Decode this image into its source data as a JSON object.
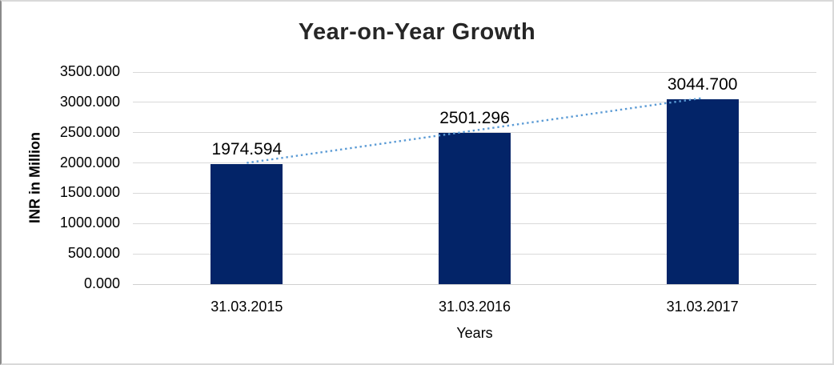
{
  "chart_data": {
    "type": "bar",
    "title": "Year-on-Year Growth",
    "xlabel": "Years",
    "ylabel": "INR in Million",
    "categories": [
      "31.03.2015",
      "31.03.2016",
      "31.03.2017"
    ],
    "values": [
      1974.594,
      2501.296,
      3044.7
    ],
    "data_labels": [
      "1974.594",
      "2501.296",
      "3044.700"
    ],
    "ylim": [
      0,
      3500
    ],
    "yticks": [
      0,
      500,
      1000,
      1500,
      2000,
      2500,
      3000,
      3500
    ],
    "ytick_labels": [
      "0.000",
      "500.000",
      "1000.000",
      "1500.000",
      "2000.000",
      "2500.000",
      "3000.000",
      "3500.000"
    ],
    "grid": true,
    "legend": "none",
    "trendline": {
      "type": "linear",
      "style": "dotted",
      "color": "#5B9BD5"
    },
    "colors": {
      "bar": "#032468",
      "gridline": "#D9D9D9",
      "axis_line": "#D0D0D0",
      "title_text": "#262626",
      "label_text": "#000000",
      "background": "#FFFFFF",
      "frame_border_left": "#8A8A8A",
      "frame_border_light": "#D9D9D9"
    }
  }
}
